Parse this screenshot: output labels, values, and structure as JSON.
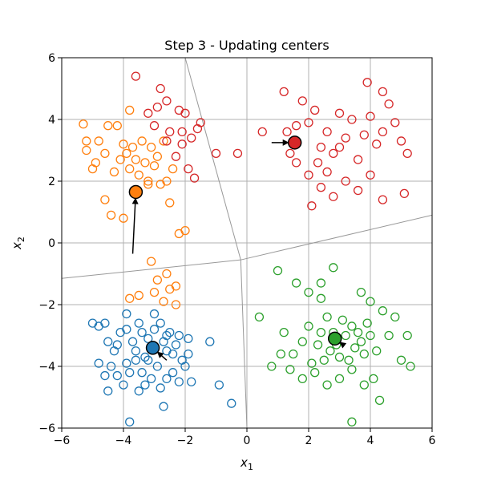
{
  "chart_data": {
    "type": "scatter",
    "title": "Step 3 - Updating centers",
    "xlabel": "x",
    "xlabel_sub": "1",
    "ylabel": "x",
    "ylabel_sub": "2",
    "xlim": [
      -6,
      6
    ],
    "ylim": [
      -6,
      6
    ],
    "xticks": [
      -6,
      -4,
      -2,
      0,
      2,
      4,
      6
    ],
    "yticks": [
      -6,
      -4,
      -2,
      0,
      2,
      4,
      6
    ],
    "xtick_labels": [
      "−6",
      "−4",
      "−2",
      "0",
      "2",
      "4",
      "6"
    ],
    "ytick_labels": [
      "−6",
      "−4",
      "−2",
      "0",
      "2",
      "4",
      "6"
    ],
    "grid": true,
    "voronoi_lines": [
      [
        [
          -2.0,
          6.0
        ],
        [
          -0.2,
          -0.55
        ]
      ],
      [
        [
          -0.2,
          -0.55
        ],
        [
          -6.0,
          -1.15
        ]
      ],
      [
        [
          -0.2,
          -0.55
        ],
        [
          0.0,
          -6.0
        ]
      ],
      [
        [
          -0.2,
          -0.55
        ],
        [
          6.0,
          0.9
        ]
      ]
    ],
    "series": [
      {
        "color": "#1f77b4",
        "center": [
          -3.05,
          -3.4
        ],
        "previous_center": [
          -2.6,
          -3.8
        ],
        "points": [
          [
            -5.0,
            -2.6
          ],
          [
            -4.8,
            -2.7
          ],
          [
            -4.6,
            -2.6
          ],
          [
            -4.5,
            -3.2
          ],
          [
            -4.3,
            -3.5
          ],
          [
            -4.1,
            -2.9
          ],
          [
            -3.9,
            -2.8
          ],
          [
            -3.9,
            -3.9
          ],
          [
            -3.7,
            -3.2
          ],
          [
            -3.5,
            -2.6
          ],
          [
            -3.4,
            -2.9
          ],
          [
            -3.3,
            -3.7
          ],
          [
            -3.2,
            -3.1
          ],
          [
            -3.0,
            -2.8
          ],
          [
            -2.8,
            -2.6
          ],
          [
            -2.7,
            -3.2
          ],
          [
            -2.6,
            -3.5
          ],
          [
            -2.5,
            -2.9
          ],
          [
            -2.4,
            -3.6
          ],
          [
            -2.3,
            -3.3
          ],
          [
            -2.2,
            -3.0
          ],
          [
            -2.1,
            -3.8
          ],
          [
            -2.0,
            -4.0
          ],
          [
            -1.9,
            -3.1
          ],
          [
            -1.8,
            -4.5
          ],
          [
            -1.2,
            -3.2
          ],
          [
            -4.8,
            -3.9
          ],
          [
            -4.6,
            -4.3
          ],
          [
            -4.4,
            -4.0
          ],
          [
            -4.2,
            -4.3
          ],
          [
            -4.0,
            -4.6
          ],
          [
            -3.8,
            -4.2
          ],
          [
            -3.6,
            -3.8
          ],
          [
            -3.4,
            -4.2
          ],
          [
            -3.3,
            -4.6
          ],
          [
            -3.1,
            -4.4
          ],
          [
            -2.9,
            -4.0
          ],
          [
            -2.8,
            -4.7
          ],
          [
            -2.6,
            -4.4
          ],
          [
            -2.4,
            -4.2
          ],
          [
            -2.2,
            -4.5
          ],
          [
            -2.7,
            -5.3
          ],
          [
            -3.5,
            -4.8
          ],
          [
            -3.8,
            -5.8
          ],
          [
            -4.5,
            -4.8
          ],
          [
            -0.9,
            -4.6
          ],
          [
            -0.5,
            -5.2
          ],
          [
            -3.9,
            -2.3
          ],
          [
            -3.0,
            -2.3
          ],
          [
            -4.2,
            -3.3
          ],
          [
            -3.6,
            -3.5
          ],
          [
            -1.9,
            -3.6
          ],
          [
            -2.6,
            -3.0
          ],
          [
            -3.2,
            -3.8
          ]
        ]
      },
      {
        "color": "#ff7f0e",
        "center": [
          -3.6,
          1.65
        ],
        "previous_center": [
          -3.7,
          -0.35
        ],
        "points": [
          [
            -5.3,
            3.85
          ],
          [
            -5.2,
            3.3
          ],
          [
            -5.0,
            2.4
          ],
          [
            -4.8,
            3.3
          ],
          [
            -4.6,
            2.9
          ],
          [
            -4.5,
            3.8
          ],
          [
            -4.3,
            2.3
          ],
          [
            -4.2,
            3.8
          ],
          [
            -4.0,
            3.2
          ],
          [
            -3.9,
            2.9
          ],
          [
            -3.8,
            2.4
          ],
          [
            -3.7,
            3.1
          ],
          [
            -3.6,
            2.7
          ],
          [
            -3.5,
            2.2
          ],
          [
            -3.4,
            3.3
          ],
          [
            -3.3,
            2.6
          ],
          [
            -3.2,
            2.0
          ],
          [
            -3.1,
            3.1
          ],
          [
            -3.0,
            2.5
          ],
          [
            -2.9,
            2.8
          ],
          [
            -2.8,
            1.9
          ],
          [
            -2.7,
            3.3
          ],
          [
            -2.6,
            2.0
          ],
          [
            -2.5,
            1.3
          ],
          [
            -2.4,
            2.4
          ],
          [
            -2.2,
            0.3
          ],
          [
            -2.0,
            0.4
          ],
          [
            -3.1,
            -0.6
          ],
          [
            -2.9,
            -1.2
          ],
          [
            -2.6,
            -1.0
          ],
          [
            -3.0,
            -1.6
          ],
          [
            -2.7,
            -1.9
          ],
          [
            -2.5,
            -1.5
          ],
          [
            -2.3,
            -2.0
          ],
          [
            -3.8,
            -1.8
          ],
          [
            -3.5,
            -1.7
          ],
          [
            -4.6,
            1.4
          ],
          [
            -4.4,
            0.9
          ],
          [
            -4.0,
            0.8
          ],
          [
            -3.8,
            4.3
          ],
          [
            -4.1,
            2.7
          ],
          [
            -3.2,
            1.9
          ],
          [
            -5.2,
            3.0
          ],
          [
            -4.9,
            2.6
          ],
          [
            -3.6,
            1.6
          ],
          [
            -2.3,
            -1.4
          ]
        ]
      },
      {
        "color": "#2ca02c",
        "center": [
          2.85,
          -3.1
        ],
        "previous_center": [
          3.05,
          -3.25
        ],
        "points": [
          [
            1.2,
            -2.9
          ],
          [
            1.5,
            -3.6
          ],
          [
            1.8,
            -3.2
          ],
          [
            2.0,
            -2.7
          ],
          [
            2.1,
            -3.9
          ],
          [
            2.3,
            -3.3
          ],
          [
            2.4,
            -2.9
          ],
          [
            2.5,
            -3.8
          ],
          [
            2.6,
            -2.4
          ],
          [
            2.7,
            -3.5
          ],
          [
            2.8,
            -2.9
          ],
          [
            2.9,
            -3.3
          ],
          [
            3.0,
            -3.7
          ],
          [
            3.1,
            -2.5
          ],
          [
            3.2,
            -3.0
          ],
          [
            3.3,
            -3.8
          ],
          [
            3.4,
            -2.7
          ],
          [
            3.5,
            -3.4
          ],
          [
            3.6,
            -2.9
          ],
          [
            3.7,
            -3.2
          ],
          [
            3.8,
            -3.6
          ],
          [
            3.9,
            -2.6
          ],
          [
            4.0,
            -3.0
          ],
          [
            4.2,
            -3.5
          ],
          [
            4.4,
            -2.2
          ],
          [
            4.6,
            -3.0
          ],
          [
            4.8,
            -2.4
          ],
          [
            5.0,
            -3.8
          ],
          [
            5.2,
            -3.0
          ],
          [
            5.3,
            -4.0
          ],
          [
            2.2,
            -4.2
          ],
          [
            2.6,
            -4.6
          ],
          [
            3.0,
            -4.4
          ],
          [
            3.4,
            -4.1
          ],
          [
            3.8,
            -4.6
          ],
          [
            4.1,
            -4.4
          ],
          [
            1.8,
            -4.4
          ],
          [
            1.4,
            -4.1
          ],
          [
            2.8,
            -0.8
          ],
          [
            1.0,
            -0.9
          ],
          [
            1.6,
            -1.3
          ],
          [
            2.0,
            -1.6
          ],
          [
            2.4,
            -1.8
          ],
          [
            3.7,
            -1.6
          ],
          [
            4.0,
            -1.9
          ],
          [
            0.4,
            -2.4
          ],
          [
            1.1,
            -3.6
          ],
          [
            4.3,
            -5.1
          ],
          [
            3.4,
            -5.8
          ],
          [
            0.8,
            -4.0
          ],
          [
            2.4,
            -1.3
          ]
        ]
      },
      {
        "color": "#d62728",
        "center": [
          1.55,
          3.25
        ],
        "previous_center": [
          0.8,
          3.25
        ],
        "points": [
          [
            -3.6,
            5.4
          ],
          [
            -2.8,
            5.0
          ],
          [
            -2.6,
            4.6
          ],
          [
            -2.2,
            4.3
          ],
          [
            -2.0,
            4.2
          ],
          [
            -1.6,
            3.7
          ],
          [
            -1.5,
            3.9
          ],
          [
            -1.8,
            3.4
          ],
          [
            -2.5,
            3.6
          ],
          [
            -2.1,
            3.2
          ],
          [
            -2.3,
            2.8
          ],
          [
            -2.6,
            3.3
          ],
          [
            -3.0,
            3.8
          ],
          [
            -3.2,
            4.2
          ],
          [
            -2.9,
            4.4
          ],
          [
            -1.9,
            2.4
          ],
          [
            -1.7,
            2.1
          ],
          [
            -1.0,
            2.9
          ],
          [
            -0.3,
            2.9
          ],
          [
            -2.1,
            3.6
          ],
          [
            0.5,
            3.6
          ],
          [
            1.2,
            4.9
          ],
          [
            1.8,
            4.6
          ],
          [
            2.0,
            3.9
          ],
          [
            2.2,
            4.3
          ],
          [
            2.4,
            3.1
          ],
          [
            2.6,
            3.6
          ],
          [
            2.8,
            2.9
          ],
          [
            3.0,
            4.2
          ],
          [
            3.2,
            3.4
          ],
          [
            3.4,
            4.0
          ],
          [
            3.6,
            2.7
          ],
          [
            3.8,
            3.5
          ],
          [
            4.0,
            4.1
          ],
          [
            4.2,
            3.2
          ],
          [
            4.4,
            3.6
          ],
          [
            4.6,
            4.5
          ],
          [
            4.8,
            3.9
          ],
          [
            5.0,
            3.3
          ],
          [
            5.2,
            2.9
          ],
          [
            1.6,
            2.6
          ],
          [
            2.0,
            2.2
          ],
          [
            2.4,
            1.8
          ],
          [
            2.8,
            1.5
          ],
          [
            3.2,
            2.0
          ],
          [
            3.6,
            1.7
          ],
          [
            4.0,
            2.2
          ],
          [
            4.4,
            1.4
          ],
          [
            5.1,
            1.6
          ],
          [
            2.1,
            1.2
          ],
          [
            1.4,
            2.9
          ],
          [
            2.6,
            2.3
          ],
          [
            3.9,
            5.2
          ],
          [
            4.4,
            4.9
          ],
          [
            1.3,
            3.6
          ],
          [
            3.0,
            3.1
          ],
          [
            1.6,
            3.8
          ],
          [
            2.3,
            2.6
          ]
        ]
      }
    ]
  }
}
